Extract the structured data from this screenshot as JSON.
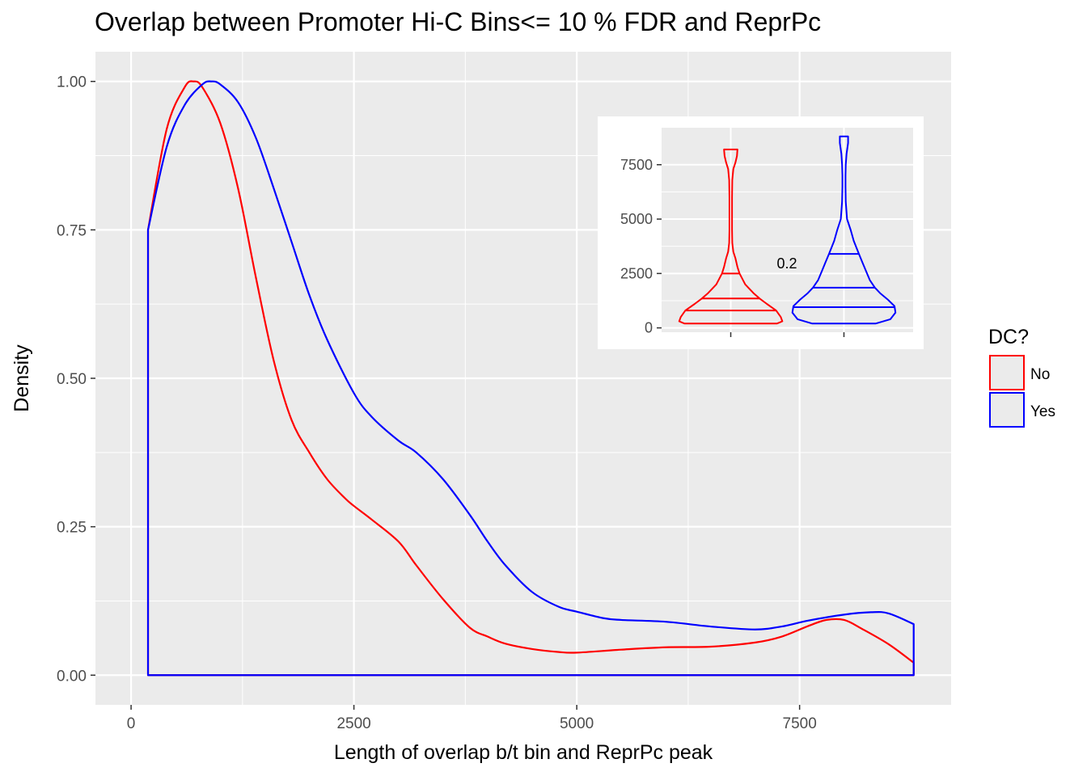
{
  "chart_data": [
    {
      "type": "area",
      "subtype": "density",
      "title": "Overlap between Promoter Hi-C Bins<= 10 % FDR and ReprPc",
      "xlabel": "Length of overlap b/t bin and ReprPc peak",
      "ylabel": "Density",
      "xlim": [
        -400,
        9200
      ],
      "ylim": [
        -0.05,
        1.05
      ],
      "x_ticks": [
        0,
        2500,
        5000,
        7500
      ],
      "x_tick_labels": [
        "0",
        "2500",
        "5000",
        "7500"
      ],
      "y_ticks": [
        0,
        0.25,
        0.5,
        0.75,
        1.0
      ],
      "y_tick_labels": [
        "0.00",
        "0.25",
        "0.50",
        "0.75",
        "1.00"
      ],
      "grid": true,
      "legend": {
        "title": "DC?",
        "position": "right"
      },
      "series": [
        {
          "name": "No",
          "color": "#ff0000",
          "x": [
            190,
            400,
            600,
            700,
            800,
            1000,
            1200,
            1400,
            1600,
            1800,
            2000,
            2200,
            2400,
            2500,
            2700,
            3000,
            3200,
            3500,
            3800,
            4000,
            4200,
            4500,
            4800,
            5000,
            5500,
            6000,
            6500,
            7000,
            7300,
            7600,
            7800,
            8000,
            8200,
            8500,
            8780
          ],
          "y": [
            0.75,
            0.92,
            0.99,
            1.0,
            0.99,
            0.93,
            0.82,
            0.67,
            0.53,
            0.43,
            0.375,
            0.33,
            0.298,
            0.285,
            0.262,
            0.225,
            0.185,
            0.128,
            0.08,
            0.065,
            0.053,
            0.044,
            0.039,
            0.038,
            0.043,
            0.047,
            0.048,
            0.055,
            0.065,
            0.083,
            0.093,
            0.093,
            0.078,
            0.052,
            0.021
          ]
        },
        {
          "name": "Yes",
          "color": "#0000ff",
          "x": [
            190,
            400,
            600,
            800,
            900,
            1000,
            1200,
            1400,
            1600,
            1800,
            2000,
            2200,
            2500,
            2700,
            3000,
            3200,
            3500,
            3800,
            4000,
            4200,
            4500,
            4800,
            5000,
            5300,
            5500,
            6000,
            6500,
            7000,
            7300,
            7600,
            8000,
            8300,
            8500,
            8780
          ],
          "y": [
            0.75,
            0.89,
            0.96,
            0.995,
            1.0,
            0.995,
            0.965,
            0.905,
            0.82,
            0.73,
            0.64,
            0.565,
            0.475,
            0.435,
            0.395,
            0.375,
            0.33,
            0.27,
            0.225,
            0.185,
            0.14,
            0.115,
            0.107,
            0.096,
            0.093,
            0.09,
            0.082,
            0.077,
            0.082,
            0.092,
            0.102,
            0.106,
            0.104,
            0.086
          ]
        }
      ]
    },
    {
      "type": "violin",
      "placement": "inset top-right",
      "ylim": [
        -200,
        9200
      ],
      "y_ticks": [
        0,
        2500,
        5000,
        7500
      ],
      "y_tick_labels": [
        "0",
        "2500",
        "5000",
        "7500"
      ],
      "annotation": "0.2",
      "series": [
        {
          "name": "No",
          "color": "#ff0000",
          "min": 200,
          "max": 8200,
          "quantiles": [
            800,
            1350,
            2500
          ],
          "profile_y": [
            200,
            300,
            500,
            800,
            1100,
            1350,
            1600,
            2000,
            2500,
            2800,
            3200,
            3500,
            3900,
            4500,
            5200,
            6000,
            6800,
            7300,
            7600,
            7900,
            8200
          ],
          "profile_w": [
            0.9,
            1.0,
            0.97,
            0.88,
            0.7,
            0.56,
            0.44,
            0.28,
            0.17,
            0.13,
            0.09,
            0.05,
            0.03,
            0.025,
            0.025,
            0.025,
            0.03,
            0.05,
            0.09,
            0.12,
            0.13
          ]
        },
        {
          "name": "Yes",
          "color": "#0000ff",
          "min": 200,
          "max": 8800,
          "quantiles": [
            950,
            1850,
            3400
          ],
          "profile_y": [
            200,
            400,
            700,
            1000,
            1300,
            1600,
            1850,
            2200,
            2600,
            3000,
            3400,
            4000,
            4500,
            5000,
            5800,
            6500,
            7000,
            7500,
            8000,
            8500,
            8800
          ],
          "profile_w": [
            0.62,
            0.9,
            1.0,
            0.98,
            0.85,
            0.7,
            0.6,
            0.5,
            0.43,
            0.36,
            0.29,
            0.19,
            0.13,
            0.06,
            0.035,
            0.03,
            0.03,
            0.035,
            0.05,
            0.08,
            0.08
          ]
        }
      ]
    }
  ]
}
